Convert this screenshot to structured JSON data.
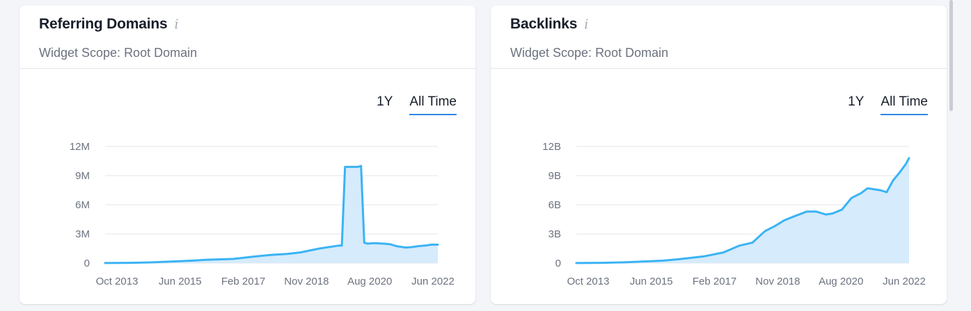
{
  "widgets": [
    {
      "title": "Referring Domains",
      "info_icon": "i",
      "scope": "Widget Scope: Root Domain",
      "tabs": [
        {
          "label": "1Y",
          "active": false
        },
        {
          "label": "All Time",
          "active": true
        }
      ],
      "chart_data": {
        "type": "area",
        "ylim": [
          0,
          12000000
        ],
        "y_ticks": [
          {
            "value": 0,
            "label": "0"
          },
          {
            "value": 3000000,
            "label": "3M"
          },
          {
            "value": 6000000,
            "label": "6M"
          },
          {
            "value": 9000000,
            "label": "9M"
          },
          {
            "value": 12000000,
            "label": "12M"
          }
        ],
        "x_ticks": [
          "Oct 2013",
          "Jun 2015",
          "Feb 2017",
          "Nov 2018",
          "Aug 2020",
          "Jun 2022"
        ],
        "grid": true,
        "color": "#3ab3f4",
        "fill": "#d6ebfb",
        "series": [
          {
            "x": [
              "2013-10",
              "2014-06",
              "2015-01",
              "2015-06",
              "2016-01",
              "2016-06",
              "2017-02",
              "2017-08",
              "2018-02",
              "2018-07",
              "2018-11",
              "2019-05",
              "2019-11",
              "2019-12",
              "2020-01",
              "2020-03",
              "2020-05",
              "2020-06",
              "2020-07",
              "2020-08",
              "2020-10",
              "2021-01",
              "2021-03",
              "2021-05",
              "2021-08",
              "2021-10",
              "2021-12",
              "2022-02",
              "2022-04",
              "2022-06"
            ],
            "y": [
              10000,
              30000,
              80000,
              150000,
              250000,
              350000,
              430000,
              650000,
              850000,
              950000,
              1100000,
              1500000,
              1800000,
              1800000,
              9900000,
              9900000,
              9900000,
              10000000,
              2100000,
              2000000,
              2050000,
              2000000,
              1950000,
              1750000,
              1600000,
              1650000,
              1750000,
              1800000,
              1900000,
              1900000
            ]
          }
        ]
      }
    },
    {
      "title": "Backlinks",
      "info_icon": "i",
      "scope": "Widget Scope: Root Domain",
      "tabs": [
        {
          "label": "1Y",
          "active": false
        },
        {
          "label": "All Time",
          "active": true
        }
      ],
      "chart_data": {
        "type": "area",
        "ylim": [
          0,
          12000000000
        ],
        "y_ticks": [
          {
            "value": 0,
            "label": "0"
          },
          {
            "value": 3000000000,
            "label": "3B"
          },
          {
            "value": 6000000000,
            "label": "6B"
          },
          {
            "value": 9000000000,
            "label": "9B"
          },
          {
            "value": 12000000000,
            "label": "12B"
          }
        ],
        "x_ticks": [
          "Oct 2013",
          "Jun 2015",
          "Feb 2017",
          "Nov 2018",
          "Aug 2020",
          "Jun 2022"
        ],
        "grid": true,
        "color": "#3ab3f4",
        "fill": "#d6ebfb",
        "series": [
          {
            "x": [
              "2013-10",
              "2014-06",
              "2015-01",
              "2015-06",
              "2016-01",
              "2016-06",
              "2017-02",
              "2017-08",
              "2018-01",
              "2018-05",
              "2018-09",
              "2018-12",
              "2019-03",
              "2019-06",
              "2019-10",
              "2020-01",
              "2020-04",
              "2020-06",
              "2020-09",
              "2020-12",
              "2021-03",
              "2021-05",
              "2021-07",
              "2021-09",
              "2021-11",
              "2022-01",
              "2022-03",
              "2022-05",
              "2022-06"
            ],
            "y": [
              10000000,
              30000000,
              80000000,
              150000000,
              250000000,
              400000000,
              700000000,
              1100000000,
              1800000000,
              2100000000,
              3300000000,
              3800000000,
              4400000000,
              4800000000,
              5300000000,
              5300000000,
              5000000000,
              5100000000,
              5500000000,
              6700000000,
              7200000000,
              7700000000,
              7600000000,
              7500000000,
              7300000000,
              8500000000,
              9300000000,
              10200000000,
              10800000000
            ]
          }
        ]
      }
    }
  ]
}
